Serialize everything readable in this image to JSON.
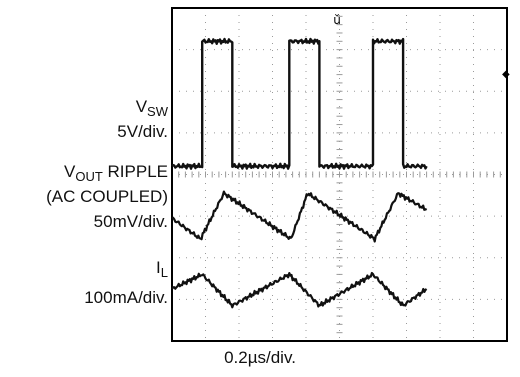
{
  "chart_data": {
    "type": "line",
    "title": "",
    "grid": true,
    "x_axis": {
      "unit_label": "0.2µs/div.",
      "divisions": 10
    },
    "y_axis": {
      "divisions": 8
    },
    "series": [
      {
        "name_main": "V",
        "name_sub": "SW",
        "scale": "5V/div.",
        "points_div": [
          [
            0,
            4.2
          ],
          [
            0.9,
            4.2
          ],
          [
            0.9,
            7.2
          ],
          [
            1.8,
            7.2
          ],
          [
            1.8,
            4.2
          ],
          [
            3.5,
            4.2
          ],
          [
            3.5,
            7.2
          ],
          [
            4.4,
            7.2
          ],
          [
            4.4,
            4.2
          ],
          [
            6.0,
            4.2
          ],
          [
            6.0,
            7.2
          ],
          [
            6.9,
            7.2
          ],
          [
            6.9,
            4.2
          ],
          [
            7.6,
            4.2
          ]
        ]
      },
      {
        "name_main": "V",
        "name_sub": "OUT",
        "name_rest": " RIPPLE",
        "line2": "(AC COUPLED)",
        "scale": "50mV/div.",
        "points_div": [
          [
            0,
            2.95
          ],
          [
            0.85,
            2.45
          ],
          [
            1.55,
            3.55
          ],
          [
            3.55,
            2.45
          ],
          [
            4.05,
            3.55
          ],
          [
            6.05,
            2.45
          ],
          [
            6.75,
            3.55
          ],
          [
            7.6,
            3.15
          ]
        ]
      },
      {
        "name_main": "I",
        "name_sub": "L",
        "scale": "100mA/div.",
        "points_div": [
          [
            0,
            1.25
          ],
          [
            0.9,
            1.6
          ],
          [
            1.8,
            0.85
          ],
          [
            3.5,
            1.6
          ],
          [
            4.4,
            0.85
          ],
          [
            6.0,
            1.6
          ],
          [
            6.9,
            0.85
          ],
          [
            7.6,
            1.25
          ]
        ]
      }
    ]
  }
}
